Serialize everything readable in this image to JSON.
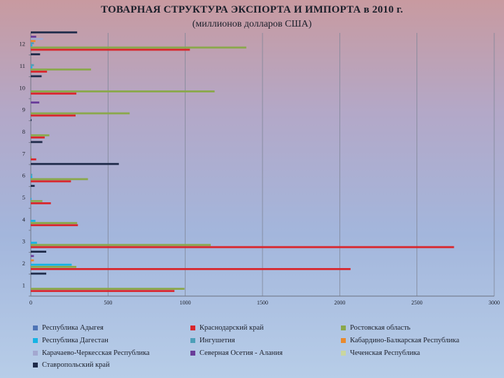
{
  "title": "ТОВАРНАЯ СТРУКТУРА ЭКСПОРТА И ИМПОРТА в 2010 г.",
  "subtitle": "(миллионов долларов США)",
  "chart_data": {
    "type": "bar",
    "orientation": "horizontal",
    "categories": [
      "1",
      "2",
      "3",
      "4",
      "5",
      "6",
      "7",
      "8",
      "9",
      "10",
      "11",
      "12"
    ],
    "x_ticks": [
      "0",
      "500",
      "1000",
      "1500",
      "2000",
      "2500",
      "3000"
    ],
    "xlim": [
      0,
      3000
    ],
    "grid": "vertical",
    "legend_position": "bottom",
    "series": [
      {
        "name": "Республика Адыгея",
        "color": "#4f74b5",
        "values": [
          0,
          0,
          0,
          0,
          0,
          0,
          0,
          0,
          0,
          0,
          0,
          0
        ]
      },
      {
        "name": "Краснодарский край",
        "color": "#d9262c",
        "values": [
          930,
          2070,
          2740,
          305,
          130,
          260,
          35,
          90,
          290,
          295,
          105,
          1030
        ]
      },
      {
        "name": "Ростовская область",
        "color": "#8aa84b",
        "values": [
          995,
          295,
          1165,
          300,
          75,
          370,
          5,
          120,
          640,
          1190,
          390,
          1395
        ]
      },
      {
        "name": "Республика Дагестан",
        "color": "#16b3e4",
        "values": [
          0,
          265,
          40,
          30,
          5,
          10,
          0,
          0,
          0,
          0,
          10,
          10
        ]
      },
      {
        "name": "Ингушетия",
        "color": "#4d9fb8",
        "values": [
          0,
          0,
          0,
          0,
          0,
          10,
          0,
          0,
          0,
          0,
          20,
          20
        ]
      },
      {
        "name": "Кабардино-Балкарская Республика",
        "color": "#e98a2e",
        "values": [
          0,
          20,
          0,
          0,
          0,
          0,
          0,
          0,
          0,
          0,
          0,
          30
        ]
      },
      {
        "name": "Карачаево-Черкесская Республика",
        "color": "#a3a8d0",
        "values": [
          0,
          0,
          0,
          0,
          0,
          0,
          0,
          0,
          0,
          0,
          0,
          80
        ]
      },
      {
        "name": "Северная Осетия - Алания",
        "color": "#6a3d9a",
        "values": [
          0,
          20,
          0,
          0,
          0,
          0,
          0,
          0,
          55,
          0,
          0,
          35
        ]
      },
      {
        "name": "Чеченская Республика",
        "color": "#c9d6a0",
        "values": [
          0,
          0,
          0,
          0,
          0,
          0,
          0,
          0,
          0,
          0,
          0,
          0
        ]
      },
      {
        "name": "Ставропольский край",
        "color": "#1f2b4a",
        "values": [
          100,
          100,
          0,
          0,
          25,
          570,
          75,
          5,
          0,
          70,
          60,
          300
        ]
      }
    ]
  }
}
